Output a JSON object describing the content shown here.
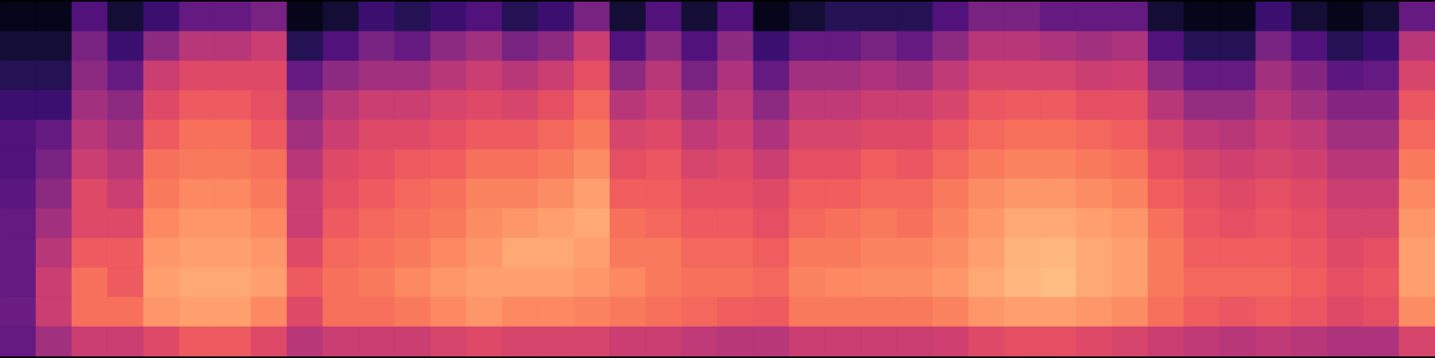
{
  "chart_data": {
    "type": "heatmap",
    "color": "magma",
    "tick_labels": false,
    "zlim": [
      0,
      100
    ],
    "cells": [
      [
        5,
        10,
        15,
        20,
        25,
        25,
        28,
        30,
        30,
        30,
        32,
        30
      ],
      [
        5,
        10,
        15,
        20,
        30,
        35,
        40,
        45,
        50,
        55,
        55,
        45
      ],
      [
        25,
        35,
        40,
        45,
        50,
        55,
        60,
        60,
        65,
        70,
        70,
        55
      ],
      [
        10,
        20,
        30,
        40,
        45,
        50,
        55,
        60,
        65,
        65,
        70,
        55
      ],
      [
        20,
        40,
        55,
        60,
        65,
        70,
        72,
        75,
        78,
        80,
        78,
        60
      ],
      [
        30,
        50,
        60,
        65,
        70,
        72,
        75,
        78,
        80,
        82,
        80,
        65
      ],
      [
        30,
        50,
        60,
        65,
        70,
        72,
        75,
        78,
        80,
        82,
        80,
        65
      ],
      [
        35,
        55,
        60,
        62,
        65,
        70,
        72,
        75,
        78,
        80,
        75,
        60
      ],
      [
        5,
        15,
        30,
        40,
        45,
        50,
        55,
        55,
        60,
        65,
        60,
        50
      ],
      [
        10,
        25,
        40,
        50,
        55,
        60,
        62,
        65,
        68,
        70,
        70,
        55
      ],
      [
        20,
        35,
        45,
        55,
        60,
        62,
        65,
        68,
        70,
        72,
        70,
        55
      ],
      [
        15,
        30,
        45,
        55,
        60,
        65,
        68,
        70,
        72,
        75,
        72,
        55
      ],
      [
        20,
        40,
        50,
        58,
        62,
        66,
        70,
        72,
        75,
        78,
        75,
        58
      ],
      [
        25,
        45,
        55,
        60,
        65,
        70,
        74,
        76,
        78,
        80,
        78,
        60
      ],
      [
        15,
        35,
        50,
        58,
        65,
        70,
        74,
        78,
        82,
        80,
        75,
        58
      ],
      [
        20,
        40,
        55,
        62,
        68,
        72,
        76,
        80,
        82,
        80,
        75,
        58
      ],
      [
        35,
        55,
        62,
        68,
        72,
        76,
        80,
        82,
        80,
        78,
        74,
        58
      ],
      [
        10,
        25,
        40,
        50,
        58,
        62,
        66,
        70,
        72,
        75,
        72,
        55
      ],
      [
        25,
        40,
        50,
        55,
        60,
        64,
        66,
        68,
        72,
        72,
        70,
        55
      ],
      [
        10,
        25,
        35,
        45,
        52,
        58,
        62,
        65,
        68,
        70,
        68,
        52
      ],
      [
        25,
        40,
        48,
        52,
        56,
        60,
        62,
        65,
        68,
        70,
        66,
        50
      ],
      [
        5,
        20,
        30,
        40,
        48,
        55,
        60,
        62,
        66,
        68,
        65,
        50
      ],
      [
        10,
        30,
        45,
        52,
        58,
        62,
        66,
        68,
        72,
        74,
        72,
        55
      ],
      [
        15,
        30,
        45,
        52,
        58,
        62,
        66,
        70,
        72,
        75,
        72,
        55
      ],
      [
        15,
        35,
        48,
        55,
        60,
        66,
        68,
        72,
        74,
        76,
        72,
        55
      ],
      [
        15,
        30,
        45,
        55,
        60,
        64,
        68,
        70,
        74,
        76,
        72,
        55
      ],
      [
        25,
        40,
        52,
        58,
        64,
        68,
        72,
        74,
        76,
        78,
        74,
        56
      ],
      [
        35,
        50,
        58,
        64,
        68,
        72,
        76,
        78,
        80,
        82,
        78,
        60
      ],
      [
        35,
        50,
        58,
        65,
        70,
        74,
        78,
        82,
        84,
        85,
        80,
        62
      ],
      [
        30,
        48,
        58,
        65,
        70,
        74,
        78,
        82,
        85,
        86,
        80,
        62
      ],
      [
        30,
        45,
        55,
        62,
        68,
        72,
        76,
        80,
        82,
        82,
        78,
        60
      ],
      [
        30,
        48,
        56,
        62,
        66,
        70,
        74,
        78,
        80,
        80,
        76,
        58
      ],
      [
        10,
        25,
        40,
        50,
        58,
        62,
        66,
        70,
        72,
        72,
        70,
        55
      ],
      [
        5,
        15,
        30,
        42,
        52,
        58,
        62,
        64,
        66,
        68,
        66,
        52
      ],
      [
        5,
        15,
        30,
        42,
        50,
        56,
        60,
        62,
        66,
        68,
        64,
        50
      ],
      [
        20,
        35,
        45,
        50,
        55,
        58,
        62,
        64,
        66,
        68,
        66,
        52
      ],
      [
        10,
        25,
        38,
        45,
        52,
        56,
        60,
        62,
        64,
        66,
        64,
        50
      ],
      [
        5,
        15,
        28,
        38,
        45,
        50,
        55,
        58,
        60,
        62,
        60,
        48
      ],
      [
        10,
        20,
        30,
        38,
        45,
        50,
        55,
        58,
        62,
        64,
        62,
        48
      ],
      [
        30,
        50,
        58,
        64,
        68,
        72,
        75,
        78,
        80,
        80,
        76,
        58
      ]
    ]
  }
}
